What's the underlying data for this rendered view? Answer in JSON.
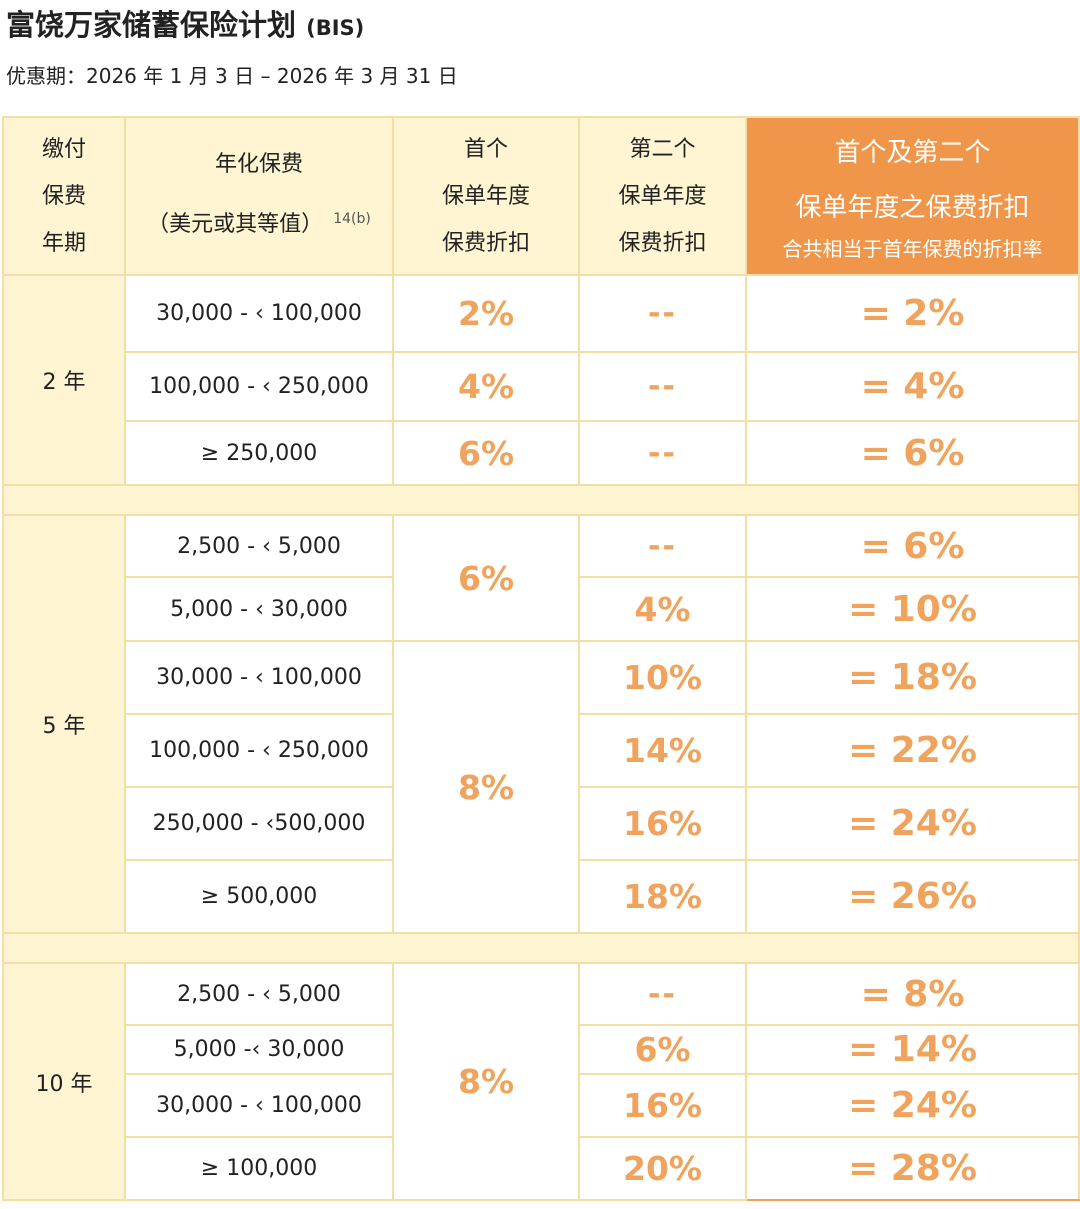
{
  "title": "富饶万家储蓄保险计划",
  "title_suffix": "(BIS)",
  "offer_period": "优惠期：2026 年 1 月 3 日 – 2026 年 3 月 31 日",
  "colors": {
    "accent": "#f0964a",
    "accent_text": "#f0a35c",
    "header_bg": "#fff5d2",
    "border": "#f3dfa6"
  },
  "headers": {
    "term": [
      "缴付",
      "保费",
      "年期"
    ],
    "premium": [
      "年化保费",
      "（美元或其等值）"
    ],
    "premium_note": "14(b)",
    "first_year": [
      "首个",
      "保单年度",
      "保费折扣"
    ],
    "second_year": [
      "第二个",
      "保单年度",
      "保费折扣"
    ],
    "combined": [
      "首个及第二个",
      "保单年度之保费折扣",
      "合共相当于首年保费的折扣率"
    ]
  },
  "groups": [
    {
      "term": "2 年",
      "rows": [
        {
          "premium": "30,000 - ‹ 100,000",
          "first": "2%",
          "second": "--",
          "total": "= 2%"
        },
        {
          "premium": "100,000 - ‹ 250,000",
          "first": "4%",
          "second": "--",
          "total": "= 4%"
        },
        {
          "premium": "≥ 250,000",
          "first": "6%",
          "second": "--",
          "total": "= 6%"
        }
      ]
    },
    {
      "term": "5 年",
      "first_merged": [
        "6%",
        "8%"
      ],
      "rows": [
        {
          "premium": "2,500 - ‹ 5,000",
          "second": "--",
          "total": "= 6%"
        },
        {
          "premium": "5,000 - ‹ 30,000",
          "second": "4%",
          "total": "= 10%"
        },
        {
          "premium": "30,000 - ‹ 100,000",
          "second": "10%",
          "total": "= 18%"
        },
        {
          "premium": "100,000 - ‹ 250,000",
          "second": "14%",
          "total": "= 22%"
        },
        {
          "premium": "250,000 - ‹500,000",
          "second": "16%",
          "total": "= 24%"
        },
        {
          "premium": "≥ 500,000",
          "second": "18%",
          "total": "= 26%"
        }
      ]
    },
    {
      "term": "10 年",
      "first_merged": "8%",
      "rows": [
        {
          "premium": "2,500 - ‹ 5,000",
          "second": "--",
          "total": "= 8%"
        },
        {
          "premium": "5,000 -‹ 30,000",
          "second": "6%",
          "total": "= 14%"
        },
        {
          "premium": "30,000 - ‹ 100,000",
          "second": "16%",
          "total": "= 24%"
        },
        {
          "premium": "≥ 100,000",
          "second": "20%",
          "total": "= 28%"
        }
      ]
    }
  ]
}
